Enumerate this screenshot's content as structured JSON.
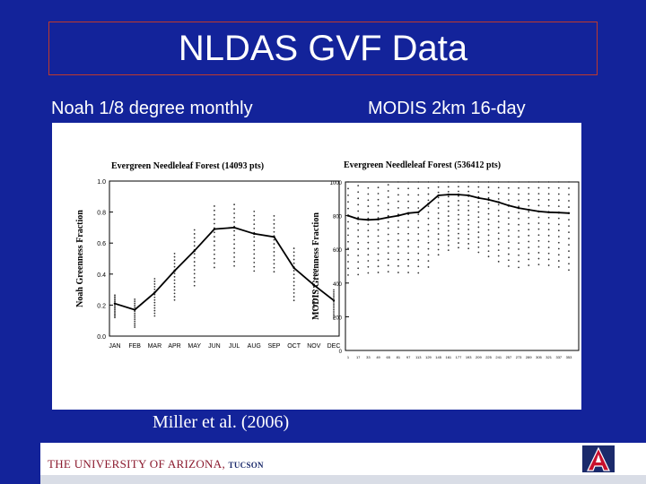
{
  "slide": {
    "title": "NLDAS GVF Data",
    "left_header": "Noah 1/8 degree monthly",
    "right_header": "MODIS 2km 16-day",
    "citation": "Miller et al. (2006)",
    "footer_text": "THE UNIVERSITY OF ARIZONA",
    "footer_city": "TUCSON",
    "colors": {
      "background": "#13239a",
      "title_border": "#c0392b",
      "logo_red": "#c8102e",
      "logo_navy": "#1b2a6b"
    }
  },
  "chart_data": [
    {
      "type": "line",
      "title": "Evergreen Needleleaf Forest (14093 pts)",
      "ylabel": "Noah Greenness Fraction",
      "xlabel": "",
      "categories": [
        "JAN",
        "FEB",
        "MAR",
        "APR",
        "MAY",
        "JUN",
        "JUL",
        "AUG",
        "SEP",
        "OCT",
        "NOV",
        "DEC"
      ],
      "ytick_labels": [
        "0.0",
        "0.2",
        "0.4",
        "0.6",
        "0.8",
        "1.0"
      ],
      "ylim": [
        0,
        1.0
      ],
      "series": [
        {
          "values": [
            0.21,
            0.17,
            0.28,
            0.42,
            0.55,
            0.69,
            0.7,
            0.66,
            0.64,
            0.44,
            0.33,
            0.23
          ]
        }
      ],
      "scatter_spread": [
        0.12,
        0.15,
        0.2,
        0.25,
        0.3,
        0.33,
        0.33,
        0.32,
        0.3,
        0.28,
        0.22,
        0.15
      ],
      "grid": false
    },
    {
      "type": "line",
      "title": "Evergreen Needleleaf Forest (536412 pts)",
      "ylabel": "MODIS Greenness Fraction",
      "xlabel": "",
      "ytick_labels": [
        "0",
        "200",
        "400",
        "600",
        "800",
        "1000"
      ],
      "ylim": [
        0,
        1000
      ],
      "x": [
        1,
        17,
        33,
        49,
        65,
        81,
        97,
        113,
        129,
        145,
        161,
        177,
        193,
        209,
        225,
        241,
        257,
        273,
        289,
        305,
        321,
        337,
        353
      ],
      "series": [
        {
          "values": [
            800,
            780,
            775,
            778,
            790,
            800,
            815,
            820,
            870,
            920,
            925,
            925,
            920,
            905,
            895,
            880,
            860,
            845,
            835,
            825,
            820,
            818,
            815
          ]
        }
      ],
      "scatter_spread": [
        470,
        440,
        420,
        420,
        430,
        450,
        470,
        480,
        500,
        470,
        440,
        420,
        420,
        430,
        450,
        470,
        480,
        470,
        440,
        420,
        420,
        430,
        450
      ],
      "grid": false
    }
  ]
}
